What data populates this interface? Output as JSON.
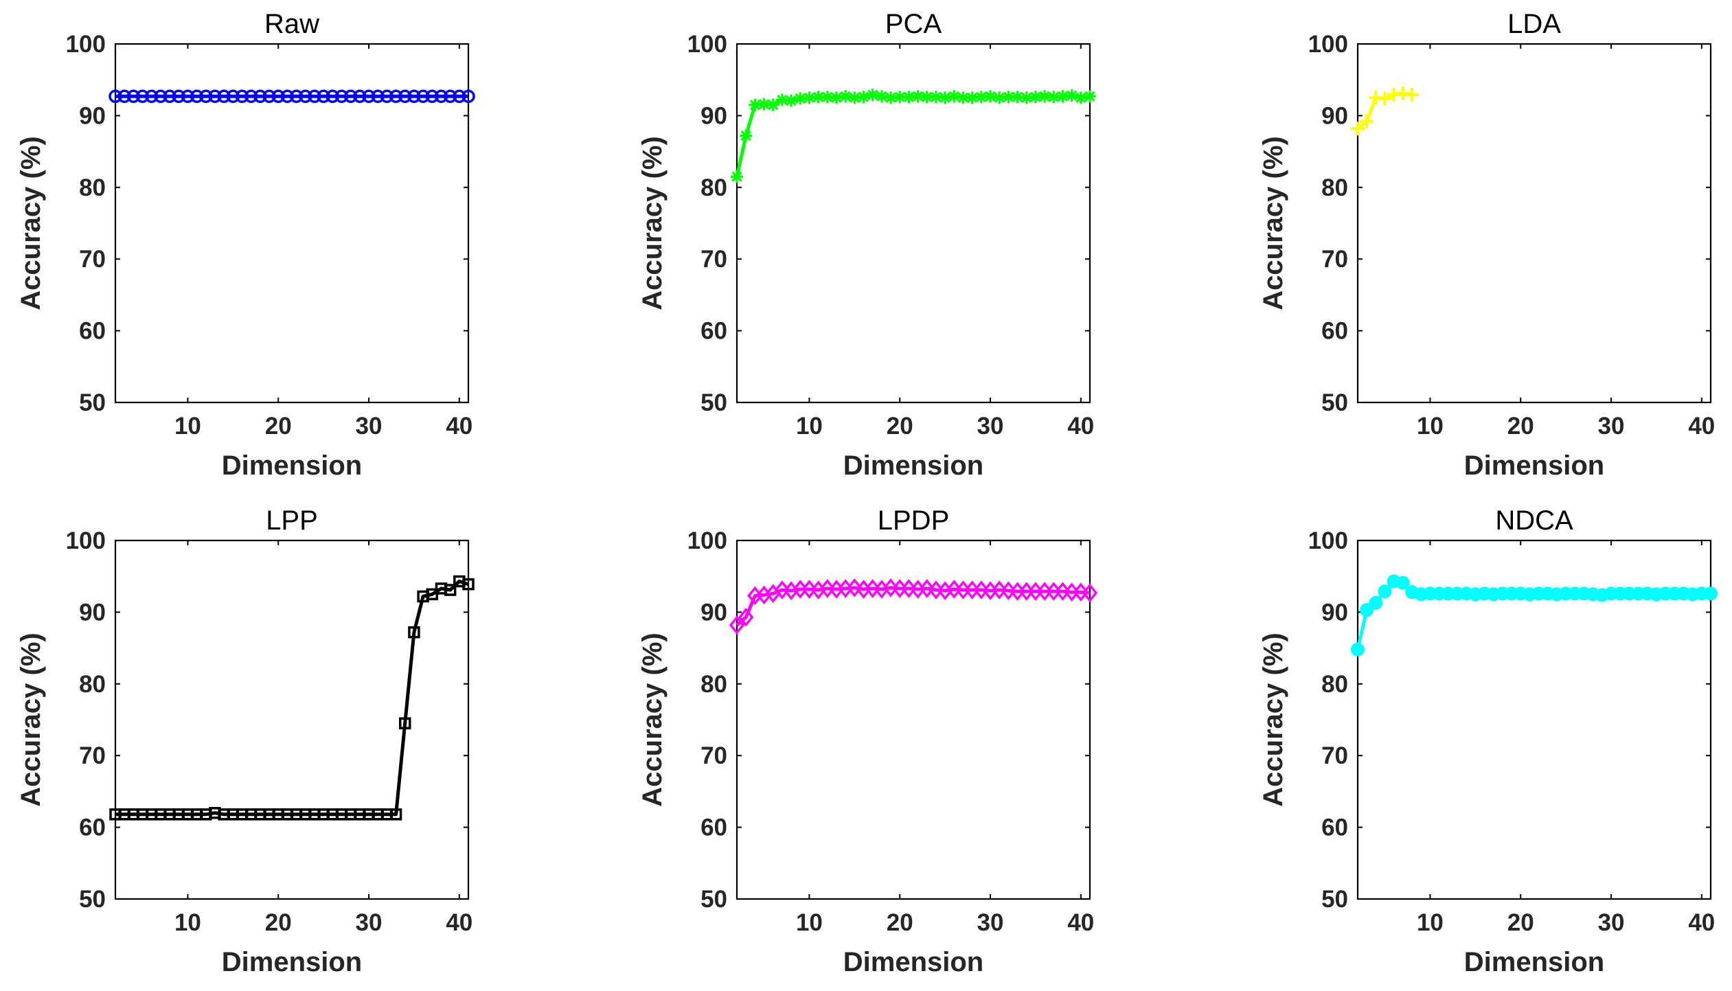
{
  "chart_data": [
    {
      "type": "line",
      "title": "Raw",
      "xlabel": "Dimension",
      "ylabel": "Accuracy (%)",
      "xlim": [
        2,
        41
      ],
      "ylim": [
        50,
        100
      ],
      "xticks": [
        10,
        20,
        30,
        40
      ],
      "yticks": [
        50,
        60,
        70,
        80,
        90,
        100
      ],
      "marker": "circle",
      "color": "#0000FF",
      "series": [
        {
          "x": [
            2,
            3,
            4,
            5,
            6,
            7,
            8,
            9,
            10,
            11,
            12,
            13,
            14,
            15,
            16,
            17,
            18,
            19,
            20,
            21,
            22,
            23,
            24,
            25,
            26,
            27,
            28,
            29,
            30,
            31,
            32,
            33,
            34,
            35,
            36,
            37,
            38,
            39,
            40,
            41
          ],
          "y": [
            92.7,
            92.7,
            92.7,
            92.7,
            92.7,
            92.7,
            92.7,
            92.7,
            92.7,
            92.7,
            92.7,
            92.7,
            92.7,
            92.7,
            92.7,
            92.7,
            92.7,
            92.7,
            92.7,
            92.7,
            92.7,
            92.7,
            92.7,
            92.7,
            92.7,
            92.7,
            92.7,
            92.7,
            92.7,
            92.7,
            92.7,
            92.7,
            92.7,
            92.7,
            92.7,
            92.7,
            92.7,
            92.7,
            92.7,
            92.7
          ]
        }
      ]
    },
    {
      "type": "line",
      "title": "PCA",
      "xlabel": "Dimension",
      "ylabel": "Accuracy (%)",
      "xlim": [
        2,
        41
      ],
      "ylim": [
        50,
        100
      ],
      "xticks": [
        10,
        20,
        30,
        40
      ],
      "yticks": [
        50,
        60,
        70,
        80,
        90,
        100
      ],
      "marker": "star",
      "color": "#00FF00",
      "series": [
        {
          "x": [
            2,
            3,
            4,
            5,
            6,
            7,
            8,
            9,
            10,
            11,
            12,
            13,
            14,
            15,
            16,
            17,
            18,
            19,
            20,
            21,
            22,
            23,
            24,
            25,
            26,
            27,
            28,
            29,
            30,
            31,
            32,
            33,
            34,
            35,
            36,
            37,
            38,
            39,
            40,
            41
          ],
          "y": [
            81.5,
            87.2,
            91.5,
            91.6,
            91.5,
            92.2,
            92.1,
            92.4,
            92.5,
            92.6,
            92.6,
            92.5,
            92.7,
            92.5,
            92.6,
            92.9,
            92.7,
            92.5,
            92.6,
            92.6,
            92.7,
            92.6,
            92.6,
            92.5,
            92.7,
            92.5,
            92.5,
            92.6,
            92.7,
            92.5,
            92.6,
            92.6,
            92.5,
            92.6,
            92.7,
            92.6,
            92.7,
            92.8,
            92.5,
            92.7
          ]
        }
      ]
    },
    {
      "type": "line",
      "title": "LDA",
      "xlabel": "Dimension",
      "ylabel": "Accuracy (%)",
      "xlim": [
        2,
        41
      ],
      "ylim": [
        50,
        100
      ],
      "xticks": [
        10,
        20,
        30,
        40
      ],
      "yticks": [
        50,
        60,
        70,
        80,
        90,
        100
      ],
      "marker": "plus",
      "color": "#FFFF00",
      "series": [
        {
          "x": [
            2,
            3,
            4,
            5,
            6,
            7,
            8
          ],
          "y": [
            88.2,
            89.2,
            92.5,
            92.4,
            92.9,
            93.1,
            92.9
          ]
        }
      ]
    },
    {
      "type": "line",
      "title": "LPP",
      "xlabel": "Dimension",
      "ylabel": "Accuracy (%)",
      "xlim": [
        2,
        41
      ],
      "ylim": [
        50,
        100
      ],
      "xticks": [
        10,
        20,
        30,
        40
      ],
      "yticks": [
        50,
        60,
        70,
        80,
        90,
        100
      ],
      "marker": "square",
      "color": "#000000",
      "series": [
        {
          "x": [
            2,
            3,
            4,
            5,
            6,
            7,
            8,
            9,
            10,
            11,
            12,
            13,
            14,
            15,
            16,
            17,
            18,
            19,
            20,
            21,
            22,
            23,
            24,
            25,
            26,
            27,
            28,
            29,
            30,
            31,
            32,
            33,
            34,
            35,
            36,
            37,
            38,
            39,
            40,
            41
          ],
          "y": [
            61.8,
            61.8,
            61.8,
            61.8,
            61.8,
            61.8,
            61.8,
            61.8,
            61.8,
            61.8,
            61.8,
            62.0,
            61.8,
            61.8,
            61.8,
            61.8,
            61.8,
            61.8,
            61.8,
            61.8,
            61.8,
            61.8,
            61.8,
            61.8,
            61.8,
            61.8,
            61.8,
            61.8,
            61.8,
            61.8,
            61.8,
            61.8,
            74.5,
            87.2,
            92.2,
            92.5,
            93.3,
            93.1,
            94.3,
            93.9
          ]
        }
      ]
    },
    {
      "type": "line",
      "title": "LPDP",
      "xlabel": "Dimension",
      "ylabel": "Accuracy (%)",
      "xlim": [
        2,
        41
      ],
      "ylim": [
        50,
        100
      ],
      "xticks": [
        10,
        20,
        30,
        40
      ],
      "yticks": [
        50,
        60,
        70,
        80,
        90,
        100
      ],
      "marker": "diamond",
      "color": "#FF00FF",
      "series": [
        {
          "x": [
            2,
            3,
            4,
            5,
            6,
            7,
            8,
            9,
            10,
            11,
            12,
            13,
            14,
            15,
            16,
            17,
            18,
            19,
            20,
            21,
            22,
            23,
            24,
            25,
            26,
            27,
            28,
            29,
            30,
            31,
            32,
            33,
            34,
            35,
            36,
            37,
            38,
            39,
            40,
            41
          ],
          "y": [
            88.2,
            89.3,
            92.3,
            92.4,
            92.6,
            93.1,
            93.0,
            93.2,
            93.2,
            93.1,
            93.3,
            93.2,
            93.3,
            93.4,
            93.2,
            93.3,
            93.2,
            93.4,
            93.3,
            93.3,
            93.2,
            93.3,
            93.1,
            93.0,
            93.2,
            93.1,
            93.1,
            93.1,
            93.0,
            93.1,
            93.0,
            92.9,
            92.9,
            92.9,
            92.9,
            92.9,
            92.9,
            92.8,
            92.8,
            92.7
          ]
        }
      ]
    },
    {
      "type": "line",
      "title": "NDCA",
      "xlabel": "Dimension",
      "ylabel": "Accuracy (%)",
      "xlim": [
        2,
        41
      ],
      "ylim": [
        50,
        100
      ],
      "xticks": [
        10,
        20,
        30,
        40
      ],
      "yticks": [
        50,
        60,
        70,
        80,
        90,
        100
      ],
      "marker": "filled-circle",
      "color": "#00FFFF",
      "series": [
        {
          "x": [
            2,
            3,
            4,
            5,
            6,
            7,
            8,
            9,
            10,
            11,
            12,
            13,
            14,
            15,
            16,
            17,
            18,
            19,
            20,
            21,
            22,
            23,
            24,
            25,
            26,
            27,
            28,
            29,
            30,
            31,
            32,
            33,
            34,
            35,
            36,
            37,
            38,
            39,
            40,
            41
          ],
          "y": [
            84.8,
            90.3,
            91.3,
            92.9,
            94.3,
            94.1,
            92.8,
            92.5,
            92.6,
            92.6,
            92.6,
            92.6,
            92.6,
            92.5,
            92.6,
            92.5,
            92.6,
            92.6,
            92.6,
            92.5,
            92.6,
            92.6,
            92.5,
            92.6,
            92.6,
            92.6,
            92.5,
            92.4,
            92.6,
            92.6,
            92.6,
            92.6,
            92.6,
            92.5,
            92.6,
            92.6,
            92.6,
            92.5,
            92.6,
            92.6
          ]
        }
      ]
    }
  ]
}
